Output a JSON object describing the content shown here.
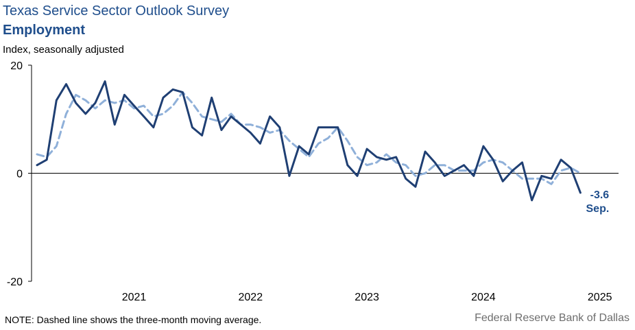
{
  "header": {
    "title": "Texas Service Sector Outlook Survey",
    "subtitle": "Employment",
    "unit_label": "Index, seasonally adjusted"
  },
  "footer": {
    "note": "NOTE: Dashed line shows the three-month moving average.",
    "source": "Federal Reserve Bank of Dallas"
  },
  "colors": {
    "actual": "#1f3f73",
    "moving_average": "#8fb0d9",
    "axis": "#000000",
    "annotation": "#1f4e8c"
  },
  "chart_data": {
    "type": "line",
    "title": "Employment",
    "xlabel": "",
    "ylabel": "Index, seasonally adjusted",
    "ylim": [
      -20,
      20
    ],
    "yticks": [
      -20,
      0,
      20
    ],
    "x_tick_labels": [
      "2021",
      "2022",
      "2023",
      "2024",
      "2025"
    ],
    "x_start": "2020-08",
    "grid": false,
    "legend": "none",
    "series": [
      {
        "values": [
          1.5,
          2.5,
          13.5,
          16.5,
          13.0,
          11.0,
          13.0,
          17.0,
          9.0,
          14.5,
          12.5,
          10.5,
          8.5,
          14.0,
          15.5,
          15.0,
          8.5,
          7.0,
          14.0,
          8.0,
          10.5,
          9.0,
          7.5,
          5.5,
          10.5,
          8.5,
          -0.5,
          5.0,
          3.5,
          8.5,
          8.5,
          8.5,
          1.5,
          -0.5,
          4.5,
          3.0,
          2.5,
          3.0,
          -1.0,
          -2.5,
          4.0,
          2.0,
          -0.5,
          0.5,
          1.5,
          -0.5,
          5.0,
          2.5,
          -1.5,
          0.5,
          2.0,
          -5.0,
          -0.5,
          -1.0,
          2.5,
          1.0,
          -3.6
        ],
        "style": "solid"
      },
      {
        "values": [
          3.5,
          3.0,
          5.0,
          11.0,
          14.5,
          13.5,
          12.0,
          13.5,
          13.0,
          13.5,
          12.0,
          12.5,
          10.5,
          11.0,
          12.5,
          15.0,
          13.0,
          10.5,
          10.0,
          9.5,
          11.0,
          9.0,
          9.0,
          8.5,
          7.5,
          8.0,
          6.0,
          4.5,
          3.0,
          5.5,
          6.5,
          8.5,
          6.0,
          3.0,
          1.5,
          2.0,
          3.5,
          2.0,
          1.5,
          -0.5,
          0.0,
          1.5,
          1.5,
          0.5,
          0.5,
          0.5,
          2.0,
          2.5,
          2.0,
          0.5,
          -1.0,
          -1.0,
          -1.0,
          -2.0,
          0.5,
          1.0,
          0.0
        ],
        "style": "dashed"
      }
    ],
    "annotations": [
      {
        "value": "-3.6",
        "label": "Sep."
      }
    ]
  }
}
